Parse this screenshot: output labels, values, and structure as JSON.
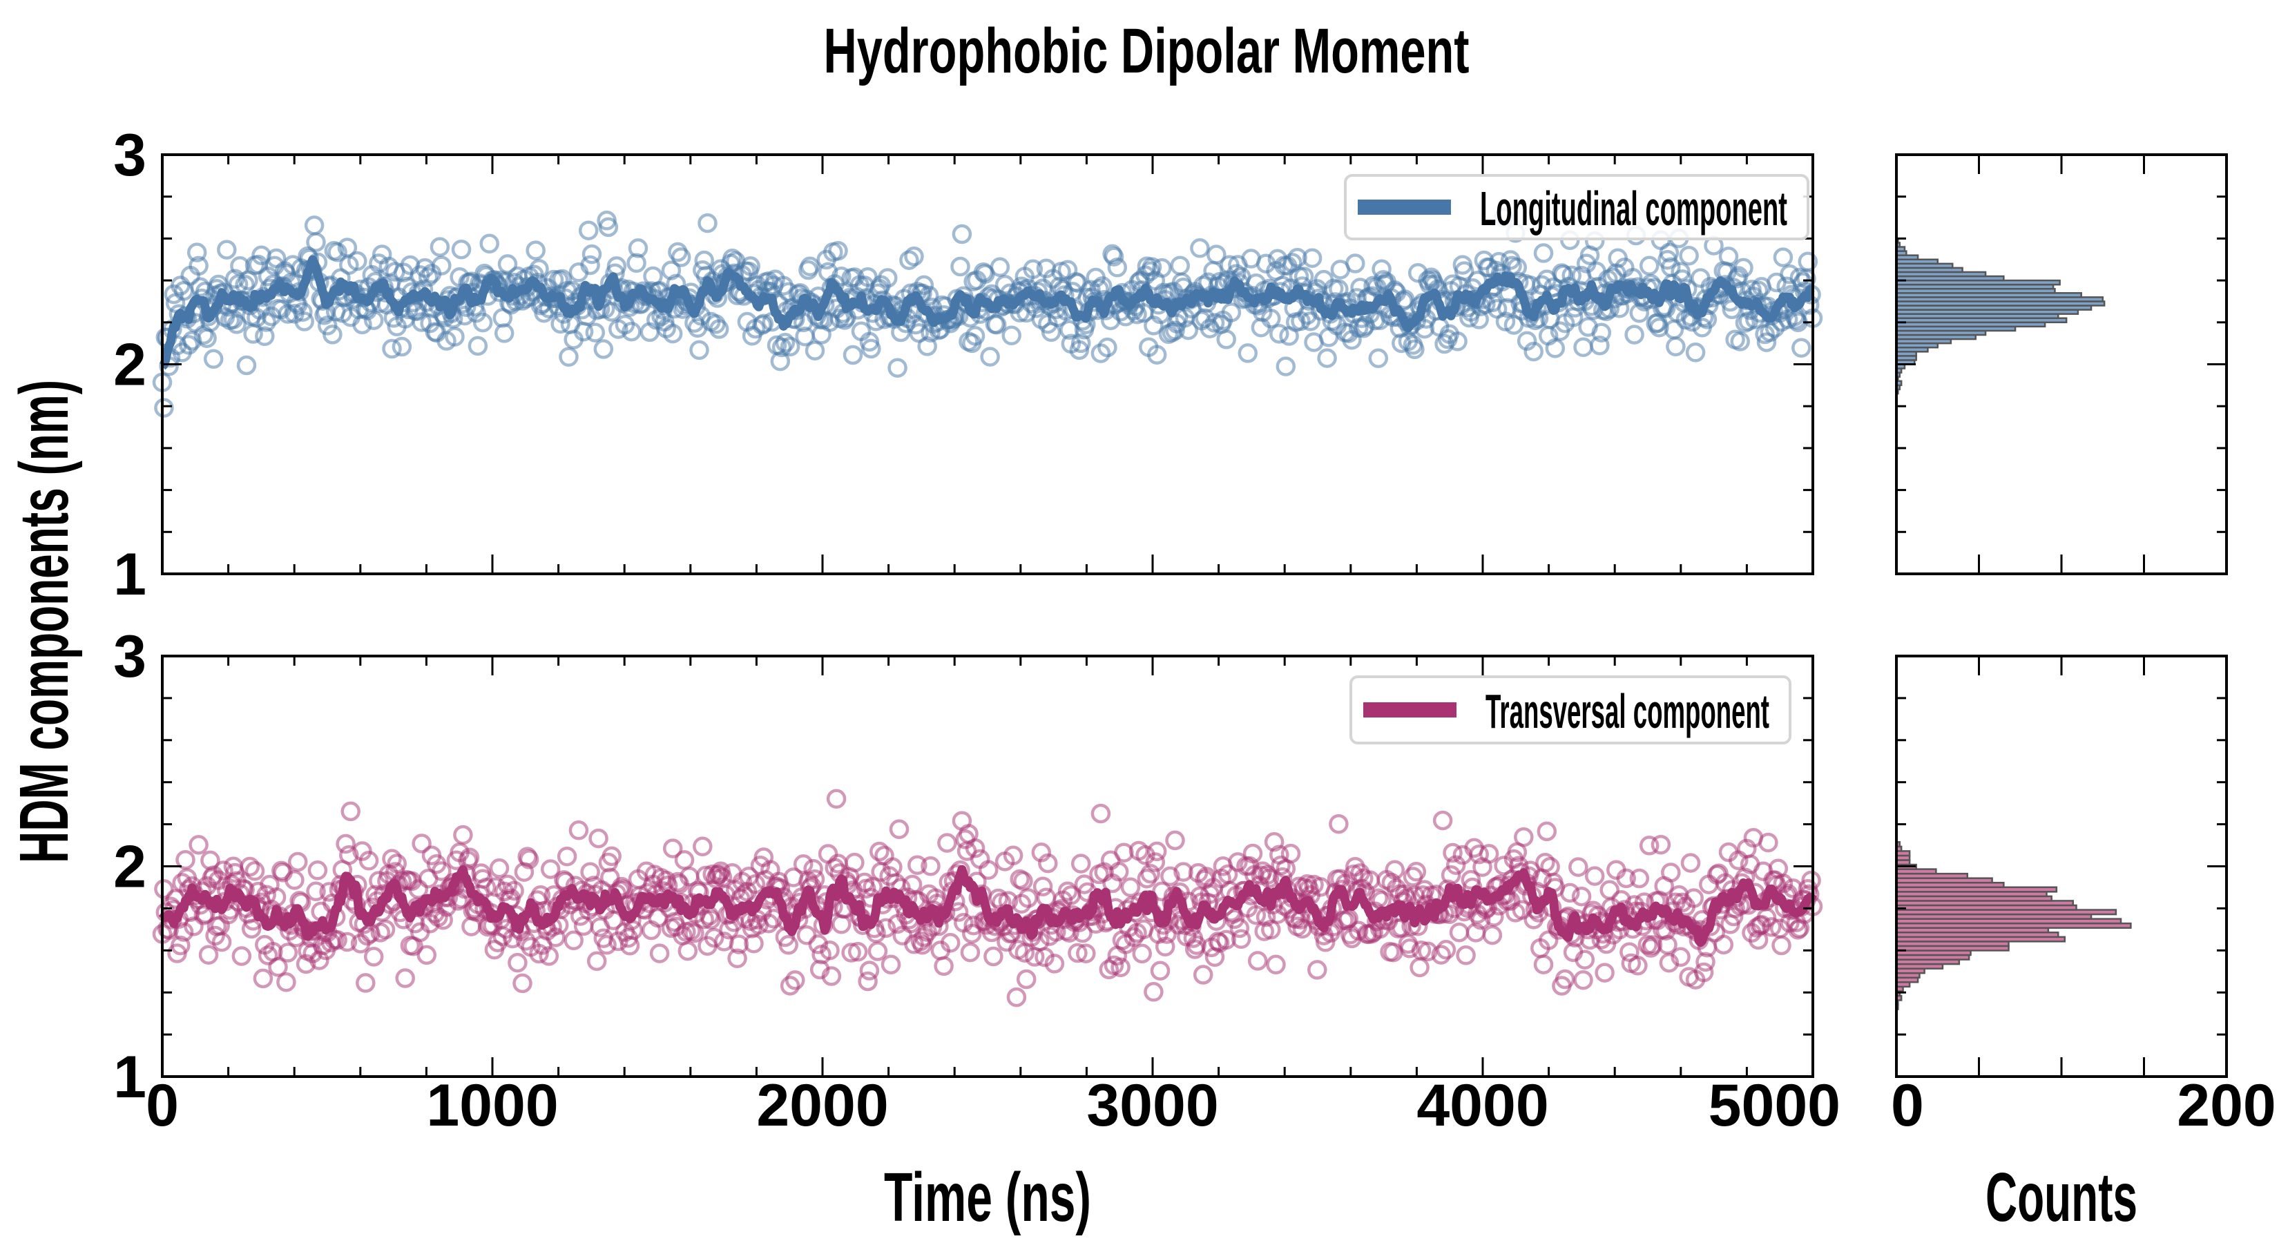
{
  "chart_data": {
    "title": "Hydrophobic Dipolar Moment",
    "ylabel": "HDM components (nm)",
    "panels": [
      {
        "type": "scatter",
        "name": "Longitudinal component",
        "legend": "Longitudinal component",
        "legend_position": "top-right",
        "color": "#4677a8",
        "xlabel": "",
        "xlim": [
          0,
          5000
        ],
        "ylim": [
          1,
          3
        ],
        "yticks": [
          "1",
          "2",
          "3"
        ],
        "n_points": 1000,
        "mean": 2.31,
        "std": 0.11,
        "initial_value": 2.02,
        "smoothing_window": 9,
        "seed": 11
      },
      {
        "type": "scatter",
        "name": "Transversal component",
        "legend": "Transversal component",
        "legend_position": "top-right",
        "color": "#a83272",
        "xlabel": "Time (ns)",
        "xlim": [
          0,
          5000
        ],
        "ylim": [
          1,
          3
        ],
        "xticks": [
          "0",
          "1000",
          "2000",
          "3000",
          "4000",
          "5000"
        ],
        "yticks": [
          "1",
          "2",
          "3"
        ],
        "n_points": 1000,
        "mean": 1.79,
        "std": 0.14,
        "initial_value": 1.7,
        "smoothing_window": 9,
        "seed": 23
      }
    ],
    "histograms": [
      {
        "type": "bar",
        "orientation": "horizontal",
        "color": "#7fa3c8",
        "edge_color": "#555555",
        "bin_start": 1.86,
        "bin_width": 0.02,
        "counts": [
          1,
          2,
          3,
          1,
          2,
          3,
          5,
          11,
          12,
          12,
          19,
          25,
          33,
          48,
          54,
          72,
          90,
          103,
          98,
          110,
          118,
          126,
          125,
          112,
          96,
          95,
          99,
          65,
          54,
          40,
          34,
          25,
          13,
          6,
          5,
          2,
          1,
          0,
          0,
          0
        ],
        "xlim": [
          0,
          200
        ],
        "ylim": [
          1,
          3
        ]
      },
      {
        "type": "bar",
        "orientation": "horizontal",
        "color": "#d07aa3",
        "edge_color": "#555555",
        "bin_start": 1.32,
        "bin_width": 0.0215,
        "counts": [
          1,
          1,
          3,
          2,
          4,
          8,
          13,
          14,
          17,
          28,
          38,
          44,
          45,
          68,
          68,
          102,
          98,
          92,
          142,
          136,
          118,
          133,
          109,
          107,
          94,
          91,
          97,
          65,
          58,
          43,
          24,
          12,
          8,
          8,
          8,
          3,
          2
        ],
        "xlabel": "Counts",
        "xlim": [
          0,
          200
        ],
        "ylim": [
          1,
          3
        ],
        "xticks": [
          "0",
          "200"
        ]
      }
    ]
  }
}
